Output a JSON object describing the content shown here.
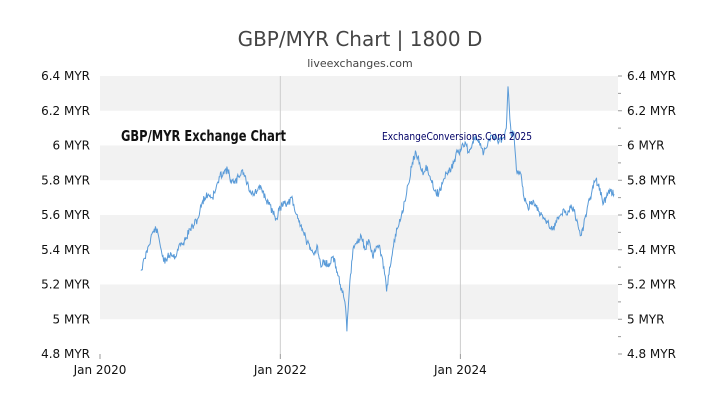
{
  "colors": {
    "line": "#5a9bd8",
    "band": "#f2f2f2",
    "axis_text": "#111111",
    "title_text": "#444444",
    "watermark_left": "#111111",
    "watermark_right": "#000066",
    "frame": "#cccccc"
  },
  "chart_data": {
    "type": "line",
    "title": "GBP/MYR Chart | 1800 D",
    "subtitle": "liveexchanges.com",
    "watermark_left": "GBP/MYR Exchange Chart",
    "watermark_right": "ExchangeConversions.Com 2025",
    "xlim": [
      "2020-01-01",
      "2025-10-01"
    ],
    "ylim": [
      4.8,
      6.4
    ],
    "y_ticks": [
      {
        "value": 6.4,
        "label": "6.4 MYR"
      },
      {
        "value": 6.2,
        "label": "6.2 MYR"
      },
      {
        "value": 6.0,
        "label": "6 MYR"
      },
      {
        "value": 5.8,
        "label": "5.8 MYR"
      },
      {
        "value": 5.6,
        "label": "5.6 MYR"
      },
      {
        "value": 5.4,
        "label": "5.4 MYR"
      },
      {
        "value": 5.2,
        "label": "5.2 MYR"
      },
      {
        "value": 5.0,
        "label": "5 MYR"
      },
      {
        "value": 4.8,
        "label": "4.8 MYR"
      }
    ],
    "x_ticks": [
      {
        "value": "2020-01-01",
        "label": "Jan 2020"
      },
      {
        "value": "2022-01-01",
        "label": "Jan 2022"
      },
      {
        "value": "2024-01-01",
        "label": "Jan 2024"
      }
    ],
    "grid": "horizontal bands, vertical lines at year ticks",
    "series": [
      {
        "points": [
          [
            "2020-06-15",
            5.28
          ],
          [
            "2020-07-01",
            5.35
          ],
          [
            "2020-07-15",
            5.42
          ],
          [
            "2020-08-01",
            5.5
          ],
          [
            "2020-08-15",
            5.52
          ],
          [
            "2020-08-25",
            5.48
          ],
          [
            "2020-09-05",
            5.4
          ],
          [
            "2020-09-20",
            5.32
          ],
          [
            "2020-10-01",
            5.36
          ],
          [
            "2020-10-15",
            5.38
          ],
          [
            "2020-11-01",
            5.36
          ],
          [
            "2020-11-15",
            5.42
          ],
          [
            "2020-12-01",
            5.43
          ],
          [
            "2020-12-15",
            5.47
          ],
          [
            "2021-01-01",
            5.52
          ],
          [
            "2021-01-15",
            5.54
          ],
          [
            "2021-02-01",
            5.58
          ],
          [
            "2021-02-20",
            5.68
          ],
          [
            "2021-03-01",
            5.7
          ],
          [
            "2021-03-15",
            5.72
          ],
          [
            "2021-04-01",
            5.7
          ],
          [
            "2021-04-15",
            5.75
          ],
          [
            "2021-05-01",
            5.82
          ],
          [
            "2021-05-15",
            5.85
          ],
          [
            "2021-06-01",
            5.86
          ],
          [
            "2021-06-15",
            5.8
          ],
          [
            "2021-07-01",
            5.78
          ],
          [
            "2021-07-15",
            5.82
          ],
          [
            "2021-08-01",
            5.86
          ],
          [
            "2021-08-15",
            5.8
          ],
          [
            "2021-09-01",
            5.74
          ],
          [
            "2021-09-15",
            5.72
          ],
          [
            "2021-10-01",
            5.74
          ],
          [
            "2021-10-15",
            5.76
          ],
          [
            "2021-11-01",
            5.7
          ],
          [
            "2021-11-15",
            5.66
          ],
          [
            "2021-12-01",
            5.62
          ],
          [
            "2021-12-15",
            5.58
          ],
          [
            "2022-01-01",
            5.64
          ],
          [
            "2022-01-15",
            5.68
          ],
          [
            "2022-02-01",
            5.66
          ],
          [
            "2022-02-15",
            5.7
          ],
          [
            "2022-03-01",
            5.62
          ],
          [
            "2022-03-15",
            5.58
          ],
          [
            "2022-04-01",
            5.52
          ],
          [
            "2022-04-15",
            5.46
          ],
          [
            "2022-05-01",
            5.4
          ],
          [
            "2022-05-15",
            5.38
          ],
          [
            "2022-06-01",
            5.42
          ],
          [
            "2022-06-15",
            5.3
          ],
          [
            "2022-07-01",
            5.34
          ],
          [
            "2022-07-15",
            5.3
          ],
          [
            "2022-08-01",
            5.36
          ],
          [
            "2022-08-15",
            5.3
          ],
          [
            "2022-09-01",
            5.2
          ],
          [
            "2022-09-20",
            5.1
          ],
          [
            "2022-09-28",
            4.93
          ],
          [
            "2022-10-10",
            5.22
          ],
          [
            "2022-10-25",
            5.42
          ],
          [
            "2022-11-10",
            5.44
          ],
          [
            "2022-11-25",
            5.48
          ],
          [
            "2022-12-10",
            5.4
          ],
          [
            "2022-12-25",
            5.46
          ],
          [
            "2023-01-10",
            5.36
          ],
          [
            "2023-01-25",
            5.42
          ],
          [
            "2023-02-10",
            5.4
          ],
          [
            "2023-02-25",
            5.3
          ],
          [
            "2023-03-08",
            5.16
          ],
          [
            "2023-03-20",
            5.3
          ],
          [
            "2023-04-05",
            5.42
          ],
          [
            "2023-04-20",
            5.52
          ],
          [
            "2023-05-05",
            5.58
          ],
          [
            "2023-05-20",
            5.68
          ],
          [
            "2023-06-05",
            5.78
          ],
          [
            "2023-06-20",
            5.9
          ],
          [
            "2023-07-05",
            5.96
          ],
          [
            "2023-07-20",
            5.9
          ],
          [
            "2023-08-05",
            5.84
          ],
          [
            "2023-08-20",
            5.88
          ],
          [
            "2023-09-05",
            5.8
          ],
          [
            "2023-09-20",
            5.74
          ],
          [
            "2023-10-05",
            5.72
          ],
          [
            "2023-10-20",
            5.78
          ],
          [
            "2023-11-05",
            5.84
          ],
          [
            "2023-11-20",
            5.86
          ],
          [
            "2023-12-05",
            5.9
          ],
          [
            "2023-12-20",
            5.96
          ],
          [
            "2024-01-05",
            5.98
          ],
          [
            "2024-01-20",
            6.02
          ],
          [
            "2024-02-05",
            5.96
          ],
          [
            "2024-02-20",
            6.02
          ],
          [
            "2024-03-05",
            6.05
          ],
          [
            "2024-03-20",
            6.0
          ],
          [
            "2024-04-05",
            5.96
          ],
          [
            "2024-04-20",
            6.0
          ],
          [
            "2024-05-05",
            6.06
          ],
          [
            "2024-05-20",
            6.05
          ],
          [
            "2024-06-05",
            6.02
          ],
          [
            "2024-06-20",
            6.04
          ],
          [
            "2024-07-05",
            6.1
          ],
          [
            "2024-07-12",
            6.34
          ],
          [
            "2024-07-25",
            6.06
          ],
          [
            "2024-08-05",
            6.08
          ],
          [
            "2024-08-15",
            5.86
          ],
          [
            "2024-09-01",
            5.84
          ],
          [
            "2024-09-15",
            5.7
          ],
          [
            "2024-10-01",
            5.64
          ],
          [
            "2024-10-15",
            5.68
          ],
          [
            "2024-11-01",
            5.66
          ],
          [
            "2024-11-15",
            5.62
          ],
          [
            "2024-12-01",
            5.58
          ],
          [
            "2024-12-20",
            5.56
          ],
          [
            "2025-01-10",
            5.52
          ],
          [
            "2025-01-25",
            5.56
          ],
          [
            "2025-02-10",
            5.6
          ],
          [
            "2025-02-25",
            5.63
          ],
          [
            "2025-03-10",
            5.6
          ],
          [
            "2025-03-25",
            5.66
          ],
          [
            "2025-04-05",
            5.62
          ],
          [
            "2025-04-20",
            5.56
          ],
          [
            "2025-05-01",
            5.48
          ],
          [
            "2025-05-15",
            5.54
          ],
          [
            "2025-06-01",
            5.66
          ],
          [
            "2025-06-15",
            5.72
          ],
          [
            "2025-07-01",
            5.8
          ],
          [
            "2025-07-15",
            5.78
          ],
          [
            "2025-08-01",
            5.66
          ],
          [
            "2025-08-15",
            5.7
          ],
          [
            "2025-09-01",
            5.74
          ],
          [
            "2025-09-15",
            5.72
          ]
        ]
      }
    ]
  }
}
